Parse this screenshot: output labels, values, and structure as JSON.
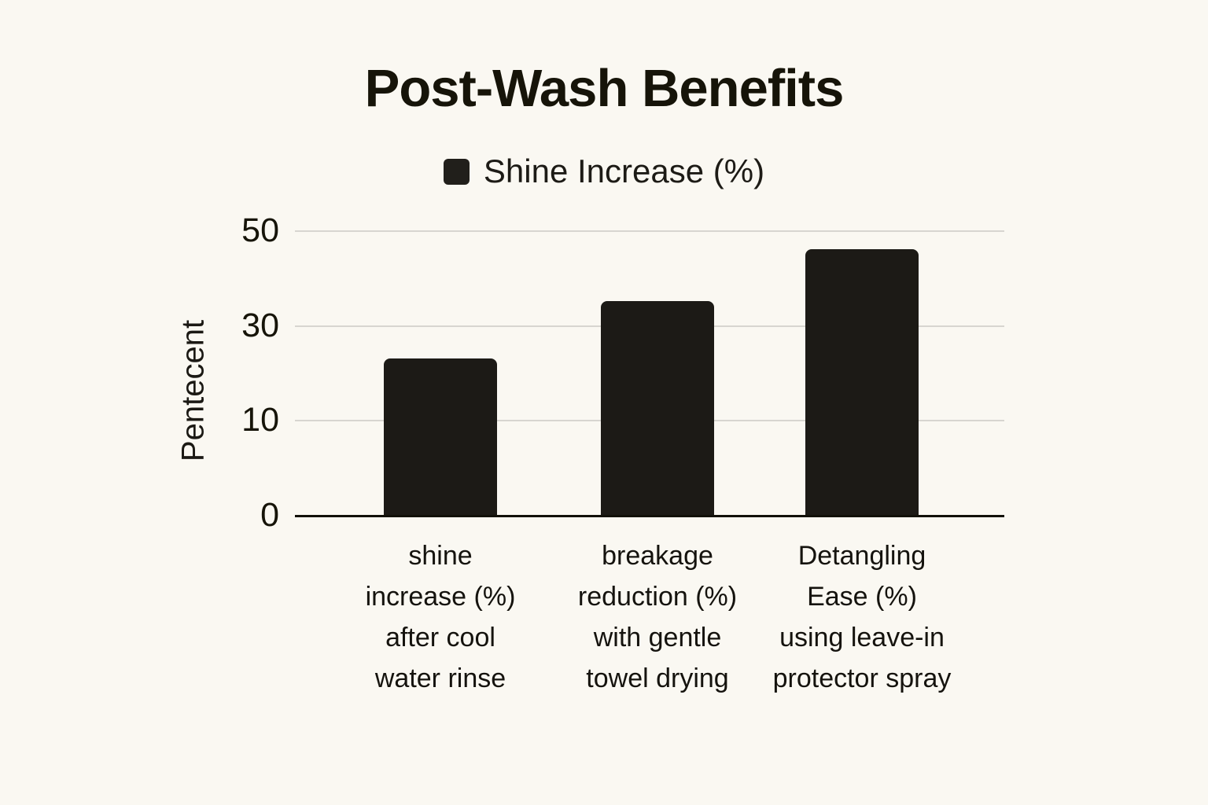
{
  "title": "Post-Wash Benefits",
  "legend": {
    "label": "Shine Increase (%)",
    "swatch_color": "#211f1b"
  },
  "chart_data": {
    "type": "bar",
    "title": "Post-Wash Benefits",
    "ylabel": "Pentecent",
    "xlabel": "",
    "legend_entries": [
      "Shine Increase (%)"
    ],
    "legend_position": "top-center",
    "categories": [
      "shine increase (%) after cool water rinse",
      "breakage reduction (%) with gentle towel drying",
      "Detangling Ease (%) using leave-in protector spray"
    ],
    "category_display": [
      "shine\nincrease (%)\nafter cool\nwater rinse",
      "breakage\nreduction (%)\nwith gentle\ntowel drying",
      "Detangling\nEase (%)\nusing leave-in\nprotector spray"
    ],
    "values": [
      23,
      35,
      46
    ],
    "yticks": [
      0,
      10,
      30,
      50
    ],
    "ytick_spacing": "even (non-linear value axis)",
    "ylim": [
      0,
      50
    ],
    "grid": "horizontal",
    "bar_color": "#1c1a16",
    "gridline_color": "#d7d5d0",
    "axis_color": "#121109",
    "background_color": "#faf8f2"
  }
}
